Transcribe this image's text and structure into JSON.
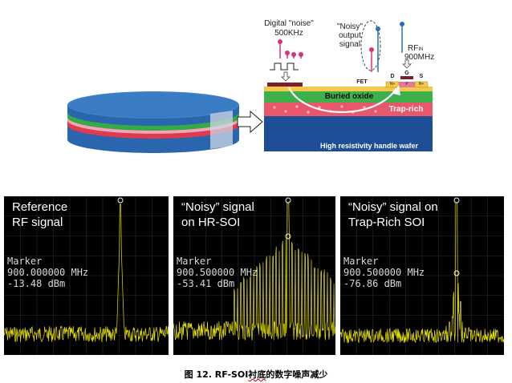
{
  "diagram": {
    "digital_noise_label": "Digital \"noise\"",
    "digital_noise_freq": "500KHz",
    "noisy_label_1": "\"Noisy\"",
    "noisy_label_2": "output",
    "noisy_label_3": "signal",
    "rf_in_label": "RF",
    "rf_in_sub": "IN",
    "rf_in_freq": "900MHz",
    "fet_label": "FET",
    "drain_label": "D",
    "gate_label": "G",
    "source_label": "S",
    "drain_doping": "N+",
    "source_doping": "N+",
    "channel_label": "P",
    "buried_oxide_label": "Buried oxide",
    "trap_rich_label": "Trap-rich",
    "handle_wafer_label": "High resistivity handle wafer"
  },
  "panels": [
    {
      "title_line1": "Reference",
      "title_line2": "RF signal",
      "marker_label": "Marker",
      "marker_freq": "900.000000 MHz",
      "marker_level": "-13.48 dBm"
    },
    {
      "title_line1": "“Noisy” signal",
      "title_line2": "on HR-SOI",
      "marker_label": "Marker",
      "marker_freq": "900.500000 MHz",
      "marker_level": "-53.41 dBm"
    },
    {
      "title_line1": "“Noisy” signal on",
      "title_line2": "Trap-Rich SOI",
      "marker_label": "Marker",
      "marker_freq": "900.500000 MHz",
      "marker_level": "-76.86 dBm"
    }
  ],
  "caption": {
    "figure_label": "图 12.",
    "text_prefix": "RF-SOI",
    "text_underlined": "衬底",
    "text_suffix": "的数字噪声减少"
  },
  "colors": {
    "wafer_blue": "#2f6db5",
    "handle_blue": "#1e4f95",
    "trap_red": "#e84a5a",
    "oxide_green": "#3cb04a",
    "spectrum_yellow": "#e8e000",
    "accent_pink": "#d6337a",
    "accent_blue": "#2a6fb5"
  }
}
